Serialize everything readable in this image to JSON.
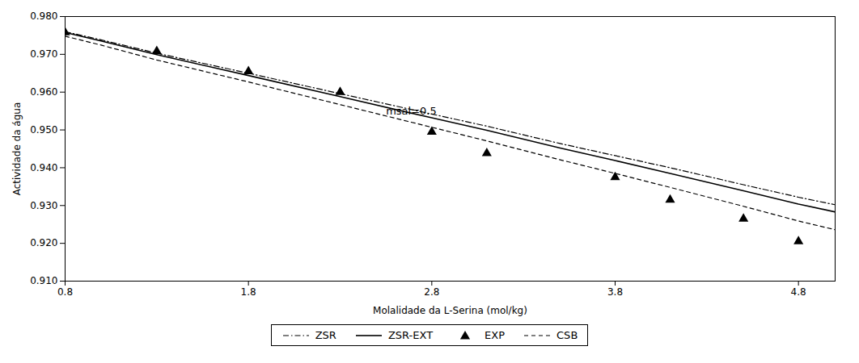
{
  "chart_data": {
    "type": "line",
    "xlabel": "Molalidade da L-Serina (mol/kg)",
    "ylabel": "Actividade da água",
    "annotations": [
      {
        "text": "msal=0.5",
        "x": 2.55,
        "y": 0.954
      }
    ],
    "xlim": [
      0.8,
      5.0
    ],
    "ylim": [
      0.91,
      0.98
    ],
    "xticks": [
      0.8,
      1.8,
      2.8,
      3.8,
      4.8
    ],
    "yticks": [
      {
        "value": 0.91,
        "label": "0.910"
      },
      {
        "value": 0.92,
        "label": "0.920"
      },
      {
        "value": 0.93,
        "label": "0.930"
      },
      {
        "value": 0.94,
        "label": "0.940"
      },
      {
        "value": 0.95,
        "label": "0.950"
      },
      {
        "value": 0.96,
        "label": "0.960"
      },
      {
        "value": 0.97,
        "label": "0.970"
      },
      {
        "value": 0.98,
        "label": "0.980"
      }
    ],
    "grid": false,
    "legend": "bottom",
    "series": [
      {
        "name": "ZSR",
        "type": "line",
        "line_style": "dashdot",
        "color": "#000000",
        "x": [
          0.8,
          1.0,
          1.3,
          1.8,
          2.3,
          2.8,
          3.1,
          3.5,
          3.8,
          4.1,
          4.5,
          4.8,
          5.0
        ],
        "values": [
          0.976,
          0.9738,
          0.9703,
          0.965,
          0.9596,
          0.9542,
          0.951,
          0.9464,
          0.9432,
          0.94,
          0.9355,
          0.9322,
          0.9302
        ]
      },
      {
        "name": "ZSR-EXT",
        "type": "line",
        "line_style": "solid",
        "color": "#000000",
        "x": [
          0.8,
          1.0,
          1.3,
          1.8,
          2.3,
          2.8,
          3.1,
          3.5,
          3.8,
          4.1,
          4.5,
          4.8,
          5.0
        ],
        "values": [
          0.9758,
          0.9735,
          0.9699,
          0.9644,
          0.9588,
          0.9532,
          0.9499,
          0.9452,
          0.9419,
          0.9385,
          0.9339,
          0.9304,
          0.9283
        ]
      },
      {
        "name": "EXP",
        "type": "scatter",
        "marker": "triangle",
        "color": "#000000",
        "x": [
          0.8,
          1.3,
          1.8,
          2.3,
          2.8,
          3.1,
          3.8,
          4.1,
          4.5,
          4.8
        ],
        "values": [
          0.9758,
          0.9708,
          0.9655,
          0.96,
          0.9495,
          0.9438,
          0.9375,
          0.9315,
          0.9265,
          0.9205
        ]
      },
      {
        "name": "CSB",
        "type": "line",
        "line_style": "dashed",
        "color": "#000000",
        "x": [
          0.8,
          1.0,
          1.3,
          1.8,
          2.3,
          2.8,
          3.1,
          3.5,
          3.8,
          4.1,
          4.5,
          4.8,
          5.0
        ],
        "values": [
          0.9748,
          0.9724,
          0.9685,
          0.9627,
          0.9567,
          0.9507,
          0.9471,
          0.9421,
          0.9385,
          0.9348,
          0.9298,
          0.9259,
          0.9236
        ]
      }
    ]
  }
}
